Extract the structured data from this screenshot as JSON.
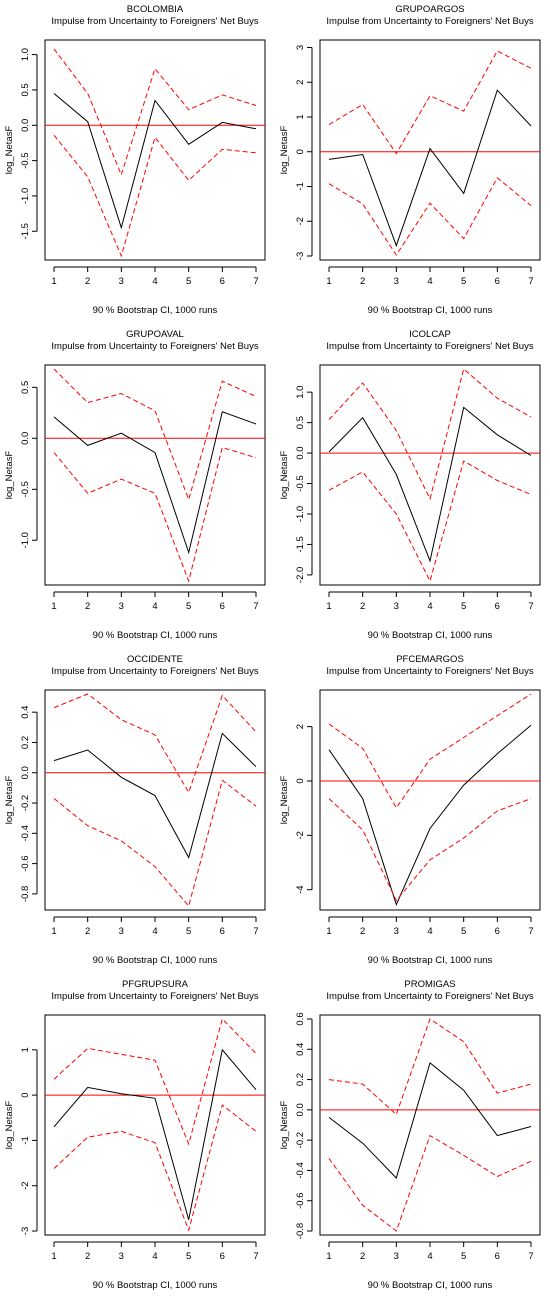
{
  "footer_label": "90 % Bootstrap CI,  1000 runs",
  "ylabel": "log_NetasF",
  "subtitle": "Impulse from Uncertainty to Foreigners' Net Buys",
  "colors": {
    "response": "#000000",
    "bounds": "#ff0000",
    "zero_line": "#ff0000"
  },
  "chart_data": [
    {
      "type": "line",
      "title": "BCOLOMBIA",
      "subtitle": "Impulse from Uncertainty to Foreigners' Net Buys",
      "xlabel": "90 % Bootstrap CI,  1000 runs",
      "ylabel": "log_NetasF",
      "x": [
        1,
        2,
        3,
        4,
        5,
        6,
        7
      ],
      "xticks": [
        1,
        2,
        3,
        4,
        5,
        6,
        7
      ],
      "ylim": [
        -1.85,
        1.15
      ],
      "yticks": [
        1.0,
        0.5,
        0.0,
        -0.5,
        -1.0,
        -1.5
      ],
      "ytick_labels": [
        "1.0",
        "0.5",
        "0.0",
        "-0.5",
        "-1.0",
        "-1.5"
      ],
      "series": [
        {
          "values": [
            0.45,
            0.05,
            -1.45,
            0.35,
            -0.27,
            0.04,
            -0.05
          ]
        },
        {
          "values": [
            1.08,
            0.45,
            -0.7,
            0.8,
            0.22,
            0.43,
            0.28
          ]
        },
        {
          "values": [
            -0.14,
            -0.73,
            -1.85,
            -0.17,
            -0.78,
            -0.34,
            -0.39
          ]
        }
      ],
      "zero_line": 0
    },
    {
      "type": "line",
      "title": "GRUPOARGOS",
      "subtitle": "Impulse from Uncertainty to Foreigners' Net Buys",
      "xlabel": "90 % Bootstrap CI,  1000 runs",
      "ylabel": "log_NetasF",
      "x": [
        1,
        2,
        3,
        4,
        5,
        6,
        7
      ],
      "xticks": [
        1,
        2,
        3,
        4,
        5,
        6,
        7
      ],
      "ylim": [
        -3.0,
        3.1
      ],
      "yticks": [
        3,
        2,
        1,
        0,
        -1,
        -2,
        -3
      ],
      "ytick_labels": [
        "3",
        "2",
        "1",
        "0",
        "-1",
        "-2",
        "-3"
      ],
      "series": [
        {
          "values": [
            -0.22,
            -0.08,
            -2.7,
            0.09,
            -1.2,
            1.77,
            0.74
          ]
        },
        {
          "values": [
            0.78,
            1.36,
            -0.05,
            1.61,
            1.17,
            2.9,
            2.4
          ]
        },
        {
          "values": [
            -0.92,
            -1.5,
            -2.97,
            -1.48,
            -2.5,
            -0.75,
            -1.55
          ]
        }
      ],
      "zero_line": 0
    },
    {
      "type": "line",
      "title": "GRUPOAVAL",
      "subtitle": "Impulse from Uncertainty to Foreigners' Net Buys",
      "xlabel": "90 % Bootstrap CI,  1000 runs",
      "ylabel": "log_NetasF",
      "x": [
        1,
        2,
        3,
        4,
        5,
        6,
        7
      ],
      "xticks": [
        1,
        2,
        3,
        4,
        5,
        6,
        7
      ],
      "ylim": [
        -1.4,
        0.68
      ],
      "yticks": [
        0.5,
        0.0,
        -0.5,
        -1.0
      ],
      "ytick_labels": [
        "0.5",
        "0.0",
        "-0.5",
        "-1.0"
      ],
      "series": [
        {
          "values": [
            0.21,
            -0.07,
            0.05,
            -0.14,
            -1.12,
            0.26,
            0.14
          ]
        },
        {
          "values": [
            0.68,
            0.35,
            0.44,
            0.27,
            -0.6,
            0.56,
            0.41
          ]
        },
        {
          "values": [
            -0.14,
            -0.54,
            -0.4,
            -0.54,
            -1.4,
            -0.09,
            -0.19
          ]
        }
      ],
      "zero_line": 0
    },
    {
      "type": "line",
      "title": "ICOLCAP",
      "subtitle": "Impulse from Uncertainty to Foreigners' Net Buys",
      "xlabel": "90 % Bootstrap CI,  1000 runs",
      "ylabel": "log_NetasF",
      "x": [
        1,
        2,
        3,
        4,
        5,
        6,
        7
      ],
      "xticks": [
        1,
        2,
        3,
        4,
        5,
        6,
        7
      ],
      "ylim": [
        -2.1,
        1.38
      ],
      "yticks": [
        1.0,
        0.5,
        0.0,
        -0.5,
        -1.0,
        -1.5,
        -2.0
      ],
      "ytick_labels": [
        "1.0",
        "0.5",
        "0.0",
        "-0.5",
        "-1.0",
        "-1.5",
        "-2.0"
      ],
      "series": [
        {
          "values": [
            0.02,
            0.58,
            -0.35,
            -1.77,
            0.75,
            0.3,
            -0.04
          ]
        },
        {
          "values": [
            0.55,
            1.15,
            0.37,
            -0.75,
            1.38,
            0.9,
            0.59
          ]
        },
        {
          "values": [
            -0.61,
            -0.31,
            -1.0,
            -2.1,
            -0.13,
            -0.45,
            -0.68
          ]
        }
      ],
      "zero_line": 0
    },
    {
      "type": "line",
      "title": "OCCIDENTE",
      "subtitle": "Impulse from Uncertainty to Foreigners' Net Buys",
      "xlabel": "90 % Bootstrap CI,  1000 runs",
      "ylabel": "log_NetasF",
      "x": [
        1,
        2,
        3,
        4,
        5,
        6,
        7
      ],
      "xticks": [
        1,
        2,
        3,
        4,
        5,
        6,
        7
      ],
      "ylim": [
        -0.88,
        0.52
      ],
      "yticks": [
        0.4,
        0.2,
        0.0,
        -0.2,
        -0.4,
        -0.6,
        -0.8
      ],
      "ytick_labels": [
        "0.4",
        "0.2",
        "0.0",
        "-0.2",
        "-0.4",
        "-0.6",
        "-0.8"
      ],
      "series": [
        {
          "values": [
            0.08,
            0.15,
            -0.03,
            -0.15,
            -0.56,
            0.26,
            0.04
          ]
        },
        {
          "values": [
            0.43,
            0.52,
            0.35,
            0.25,
            -0.13,
            0.51,
            0.27
          ]
        },
        {
          "values": [
            -0.17,
            -0.35,
            -0.45,
            -0.62,
            -0.88,
            -0.05,
            -0.22
          ]
        }
      ],
      "zero_line": 0
    },
    {
      "type": "line",
      "title": "PFCEMARGOS",
      "subtitle": "Impulse from Uncertainty to Foreigners' Net Buys",
      "xlabel": "90 % Bootstrap CI,  1000 runs",
      "ylabel": "log_NetasF",
      "x": [
        1,
        2,
        3,
        4,
        5,
        6,
        7
      ],
      "xticks": [
        1,
        2,
        3,
        4,
        5,
        6,
        7
      ],
      "ylim": [
        -4.6,
        3.2
      ],
      "yticks": [
        2,
        0,
        -2,
        -4
      ],
      "ytick_labels": [
        "2",
        "0",
        "-2",
        "-4"
      ],
      "series": [
        {
          "values": [
            1.15,
            -0.65,
            -4.55,
            -1.75,
            -0.15,
            1.0,
            2.05
          ]
        },
        {
          "values": [
            2.1,
            1.2,
            -0.99,
            0.8,
            1.6,
            2.4,
            3.2
          ]
        },
        {
          "values": [
            -0.65,
            -1.8,
            -4.4,
            -2.9,
            -2.1,
            -1.1,
            -0.65
          ]
        }
      ],
      "zero_line": 0
    },
    {
      "type": "line",
      "title": "PFGRUPSURA",
      "subtitle": "Impulse from Uncertainty to Foreigners' Net Buys",
      "xlabel": "90 % Bootstrap CI,  1000 runs",
      "ylabel": "log_NetasF",
      "x": [
        1,
        2,
        3,
        4,
        5,
        6,
        7
      ],
      "xticks": [
        1,
        2,
        3,
        4,
        5,
        6,
        7
      ],
      "ylim": [
        -3.0,
        1.68
      ],
      "yticks": [
        1,
        0,
        -1,
        -2,
        -3
      ],
      "ytick_labels": [
        "1",
        "0",
        "-1",
        "-2",
        "-3"
      ],
      "series": [
        {
          "values": [
            -0.7,
            0.17,
            0.03,
            -0.07,
            -2.75,
            1.0,
            0.12
          ]
        },
        {
          "values": [
            0.35,
            1.03,
            0.9,
            0.77,
            -1.08,
            1.68,
            0.92
          ]
        },
        {
          "values": [
            -1.62,
            -0.93,
            -0.8,
            -1.05,
            -2.98,
            -0.22,
            -0.8
          ]
        }
      ],
      "zero_line": 0
    },
    {
      "type": "line",
      "title": "PROMIGAS",
      "subtitle": "Impulse from Uncertainty to Foreigners' Net Buys",
      "xlabel": "90 % Bootstrap CI,  1000 runs",
      "ylabel": "log_NetasF",
      "x": [
        1,
        2,
        3,
        4,
        5,
        6,
        7
      ],
      "xticks": [
        1,
        2,
        3,
        4,
        5,
        6,
        7
      ],
      "ylim": [
        -0.8,
        0.6
      ],
      "yticks": [
        0.6,
        0.4,
        0.2,
        0.0,
        -0.2,
        -0.4,
        -0.6,
        -0.8
      ],
      "ytick_labels": [
        "0.6",
        "0.4",
        "0.2",
        "0.0",
        "-0.2",
        "-0.4",
        "-0.6",
        "-0.8"
      ],
      "series": [
        {
          "values": [
            -0.05,
            -0.22,
            -0.45,
            0.31,
            0.13,
            -0.17,
            -0.11
          ]
        },
        {
          "values": [
            0.2,
            0.17,
            -0.03,
            0.6,
            0.45,
            0.11,
            0.17
          ]
        },
        {
          "values": [
            -0.32,
            -0.63,
            -0.8,
            -0.17,
            -0.3,
            -0.44,
            -0.34
          ]
        }
      ],
      "zero_line": 0
    }
  ]
}
